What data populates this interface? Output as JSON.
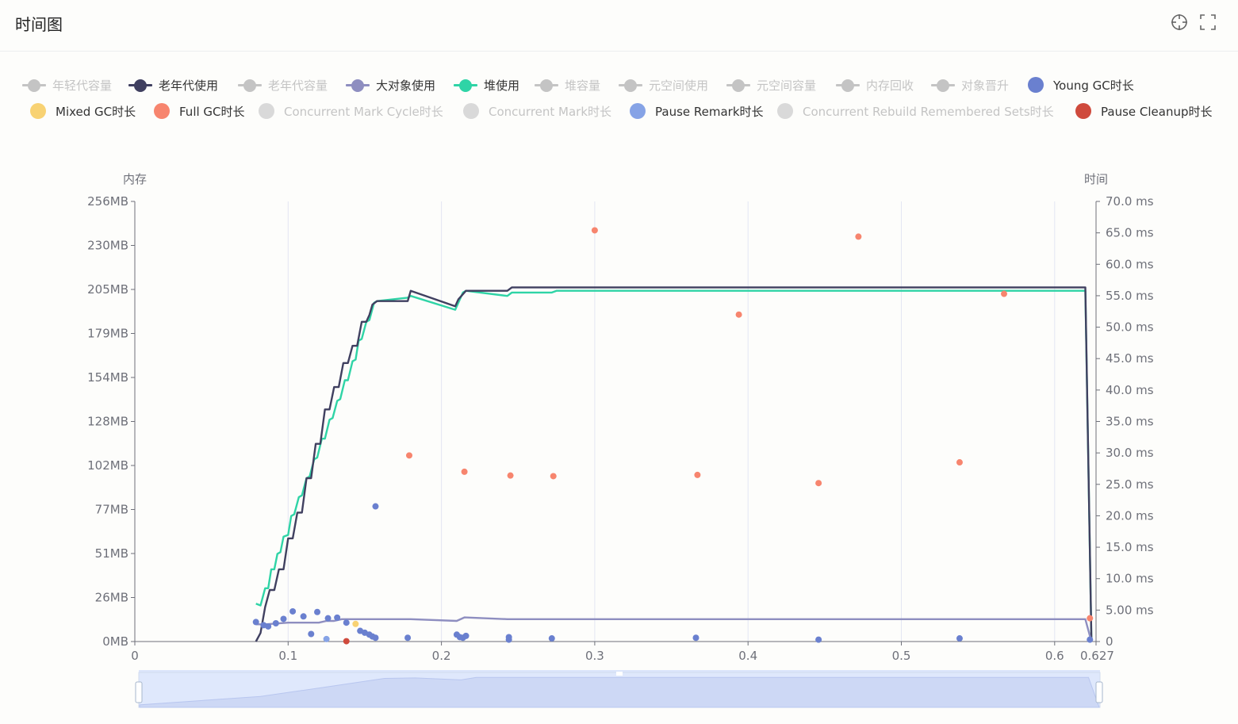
{
  "page": {
    "title": "时间图"
  },
  "toolbar": {
    "crosshair_icon": "crosshair-icon",
    "fullscreen_icon": "fullscreen-icon"
  },
  "legend": {
    "rows": [
      [
        {
          "label": "年轻代容量",
          "type": "line",
          "color": "#c4c4c4",
          "off": true
        },
        {
          "label": "老年代使用",
          "type": "line",
          "color": "#404060",
          "off": false
        },
        {
          "label": "老年代容量",
          "type": "line",
          "color": "#c4c4c4",
          "off": true
        },
        {
          "label": "大对象使用",
          "type": "line",
          "color": "#8e8ec0",
          "off": false
        },
        {
          "label": "堆使用",
          "type": "line",
          "color": "#2fd4a6",
          "off": false
        },
        {
          "label": "堆容量",
          "type": "line",
          "color": "#c4c4c4",
          "off": true
        },
        {
          "label": "元空间使用",
          "type": "line",
          "color": "#c4c4c4",
          "off": true
        },
        {
          "label": "元空间容量",
          "type": "line",
          "color": "#c4c4c4",
          "off": true
        },
        {
          "label": "内存回收",
          "type": "line",
          "color": "#c4c4c4",
          "off": true
        },
        {
          "label": "对象晋升",
          "type": "line",
          "color": "#c4c4c4",
          "off": true
        },
        {
          "label": "Young GC时长",
          "type": "circle",
          "color": "#6a80cf",
          "off": false
        }
      ],
      [
        {
          "label": "Mixed GC时长",
          "type": "circle",
          "color": "#f8d273",
          "off": false
        },
        {
          "label": "Full GC时长",
          "type": "circle",
          "color": "#f7856e",
          "off": false
        },
        {
          "label": "Concurrent Mark Cycle时长",
          "type": "circle",
          "color": "#d9d9d9",
          "off": true
        },
        {
          "label": "Concurrent Mark时长",
          "type": "circle",
          "color": "#d9d9d9",
          "off": true
        },
        {
          "label": "Pause Remark时长",
          "type": "circle",
          "color": "#86a3e6",
          "off": false
        },
        {
          "label": "Concurrent Rebuild Remembered Sets时长",
          "type": "circle",
          "color": "#d9d9d9",
          "off": true
        },
        {
          "label": "Pause Cleanup时长",
          "type": "circle",
          "color": "#cf4a3c",
          "off": false
        }
      ]
    ]
  },
  "chart_data": {
    "type": "line",
    "left_axis": {
      "name": "内存",
      "unit": "MB",
      "range": [
        0,
        256
      ],
      "ticks": [
        "0MB",
        "26MB",
        "51MB",
        "77MB",
        "102MB",
        "128MB",
        "154MB",
        "179MB",
        "205MB",
        "230MB",
        "256MB"
      ]
    },
    "right_axis": {
      "name": "时间",
      "unit": "ms",
      "range": [
        0,
        70
      ],
      "ticks": [
        "0",
        "5.00 ms",
        "10.0 ms",
        "15.0 ms",
        "20.0 ms",
        "25.0 ms",
        "30.0 ms",
        "35.0 ms",
        "40.0 ms",
        "45.0 ms",
        "50.0 ms",
        "55.0 ms",
        "60.0 ms",
        "65.0 ms",
        "70.0 ms"
      ]
    },
    "x_axis": {
      "range": [
        0,
        0.627
      ],
      "ticks": [
        "0",
        "0.1",
        "0.2",
        "0.3",
        "0.4",
        "0.5",
        "0.6",
        "0.627"
      ]
    },
    "grid": "vertical",
    "series": [
      {
        "name": "堆使用",
        "kind": "line",
        "axis": "left",
        "color": "#2fd4a6",
        "points": [
          [
            0.079,
            22
          ],
          [
            0.082,
            21
          ],
          [
            0.085,
            31
          ],
          [
            0.087,
            31
          ],
          [
            0.089,
            42
          ],
          [
            0.091,
            42
          ],
          [
            0.093,
            51
          ],
          [
            0.095,
            52
          ],
          [
            0.097,
            61
          ],
          [
            0.1,
            62
          ],
          [
            0.102,
            73
          ],
          [
            0.104,
            74
          ],
          [
            0.107,
            84
          ],
          [
            0.109,
            85
          ],
          [
            0.112,
            95
          ],
          [
            0.114,
            96
          ],
          [
            0.117,
            106
          ],
          [
            0.119,
            107
          ],
          [
            0.122,
            118
          ],
          [
            0.124,
            118
          ],
          [
            0.127,
            129
          ],
          [
            0.129,
            130
          ],
          [
            0.132,
            140
          ],
          [
            0.134,
            141
          ],
          [
            0.137,
            152
          ],
          [
            0.139,
            152
          ],
          [
            0.142,
            163
          ],
          [
            0.144,
            164
          ],
          [
            0.146,
            175
          ],
          [
            0.148,
            176
          ],
          [
            0.151,
            186
          ],
          [
            0.153,
            187
          ],
          [
            0.156,
            197
          ],
          [
            0.158,
            198
          ],
          [
            0.178,
            200
          ],
          [
            0.18,
            201
          ],
          [
            0.209,
            193
          ],
          [
            0.211,
            197
          ],
          [
            0.214,
            203
          ],
          [
            0.216,
            204
          ],
          [
            0.243,
            201
          ],
          [
            0.246,
            203
          ],
          [
            0.272,
            203
          ],
          [
            0.275,
            204
          ],
          [
            0.35,
            204
          ],
          [
            0.5,
            204
          ],
          [
            0.62,
            204
          ],
          [
            0.624,
            0
          ]
        ]
      },
      {
        "name": "老年代使用",
        "kind": "line",
        "axis": "left",
        "color": "#404060",
        "points": [
          [
            0.079,
            0
          ],
          [
            0.082,
            5
          ],
          [
            0.085,
            20
          ],
          [
            0.088,
            30
          ],
          [
            0.091,
            30
          ],
          [
            0.094,
            42
          ],
          [
            0.097,
            42
          ],
          [
            0.1,
            60
          ],
          [
            0.103,
            60
          ],
          [
            0.106,
            75
          ],
          [
            0.109,
            75
          ],
          [
            0.112,
            95
          ],
          [
            0.115,
            95
          ],
          [
            0.118,
            115
          ],
          [
            0.121,
            115
          ],
          [
            0.124,
            135
          ],
          [
            0.127,
            135
          ],
          [
            0.13,
            148
          ],
          [
            0.133,
            148
          ],
          [
            0.136,
            162
          ],
          [
            0.139,
            162
          ],
          [
            0.142,
            172
          ],
          [
            0.145,
            172
          ],
          [
            0.148,
            186
          ],
          [
            0.151,
            186
          ],
          [
            0.153,
            190
          ],
          [
            0.155,
            196
          ],
          [
            0.158,
            198
          ],
          [
            0.178,
            198
          ],
          [
            0.18,
            204
          ],
          [
            0.209,
            195
          ],
          [
            0.211,
            199
          ],
          [
            0.216,
            204
          ],
          [
            0.243,
            204
          ],
          [
            0.246,
            206
          ],
          [
            0.272,
            206
          ],
          [
            0.275,
            206
          ],
          [
            0.35,
            206
          ],
          [
            0.5,
            206
          ],
          [
            0.62,
            206
          ],
          [
            0.624,
            0
          ]
        ]
      },
      {
        "name": "大对象使用",
        "kind": "line",
        "axis": "left",
        "color": "#8e8ec0",
        "points": [
          [
            0.079,
            10
          ],
          [
            0.085,
            10
          ],
          [
            0.1,
            11
          ],
          [
            0.12,
            11
          ],
          [
            0.125,
            12
          ],
          [
            0.13,
            12
          ],
          [
            0.135,
            13
          ],
          [
            0.15,
            13
          ],
          [
            0.18,
            13
          ],
          [
            0.21,
            12
          ],
          [
            0.215,
            14
          ],
          [
            0.243,
            13
          ],
          [
            0.3,
            13
          ],
          [
            0.5,
            13
          ],
          [
            0.62,
            13
          ],
          [
            0.624,
            0
          ]
        ]
      },
      {
        "name": "Young GC时长",
        "kind": "scatter",
        "axis": "right",
        "color": "#6a80cf",
        "points": [
          [
            0.079,
            3.1
          ],
          [
            0.084,
            2.6
          ],
          [
            0.087,
            2.4
          ],
          [
            0.092,
            2.9
          ],
          [
            0.097,
            3.6
          ],
          [
            0.103,
            4.8
          ],
          [
            0.11,
            4.0
          ],
          [
            0.115,
            1.2
          ],
          [
            0.119,
            4.7
          ],
          [
            0.126,
            3.7
          ],
          [
            0.132,
            3.8
          ],
          [
            0.138,
            3.0
          ],
          [
            0.147,
            1.7
          ],
          [
            0.15,
            1.4
          ],
          [
            0.153,
            1.1
          ],
          [
            0.155,
            0.8
          ],
          [
            0.157,
            0.6
          ],
          [
            0.157,
            21.5
          ],
          [
            0.178,
            0.6
          ],
          [
            0.21,
            1.1
          ],
          [
            0.212,
            0.7
          ],
          [
            0.214,
            0.6
          ],
          [
            0.216,
            0.9
          ],
          [
            0.244,
            0.7
          ],
          [
            0.244,
            0.3
          ],
          [
            0.272,
            0.5
          ],
          [
            0.366,
            0.6
          ],
          [
            0.446,
            0.3
          ],
          [
            0.538,
            0.5
          ],
          [
            0.623,
            0.3
          ]
        ]
      },
      {
        "name": "Mixed GC时长",
        "kind": "scatter",
        "axis": "right",
        "color": "#f8d273",
        "points": [
          [
            0.144,
            2.8
          ]
        ]
      },
      {
        "name": "Full GC时长",
        "kind": "scatter",
        "axis": "right",
        "color": "#f7856e",
        "points": [
          [
            0.179,
            29.6
          ],
          [
            0.215,
            27.0
          ],
          [
            0.245,
            26.4
          ],
          [
            0.273,
            26.3
          ],
          [
            0.3,
            65.4
          ],
          [
            0.367,
            26.5
          ],
          [
            0.394,
            52.0
          ],
          [
            0.446,
            25.2
          ],
          [
            0.472,
            64.4
          ],
          [
            0.538,
            28.5
          ],
          [
            0.567,
            55.3
          ],
          [
            0.623,
            3.7
          ]
        ]
      },
      {
        "name": "Pause Remark时长",
        "kind": "scatter",
        "axis": "right",
        "color": "#86a3e6",
        "points": [
          [
            0.125,
            0.4
          ]
        ]
      },
      {
        "name": "Pause Cleanup时长",
        "kind": "scatter",
        "axis": "right",
        "color": "#cf4a3c",
        "points": [
          [
            0.138,
            0.05
          ]
        ]
      }
    ],
    "overview": {
      "color": "#cdd8f5",
      "points": [
        [
          0,
          5
        ],
        [
          0.079,
          22
        ],
        [
          0.12,
          40
        ],
        [
          0.16,
          58
        ],
        [
          0.18,
          59
        ],
        [
          0.21,
          55
        ],
        [
          0.22,
          60
        ],
        [
          0.3,
          60
        ],
        [
          0.5,
          60
        ],
        [
          0.62,
          60
        ],
        [
          0.627,
          0
        ]
      ]
    }
  }
}
